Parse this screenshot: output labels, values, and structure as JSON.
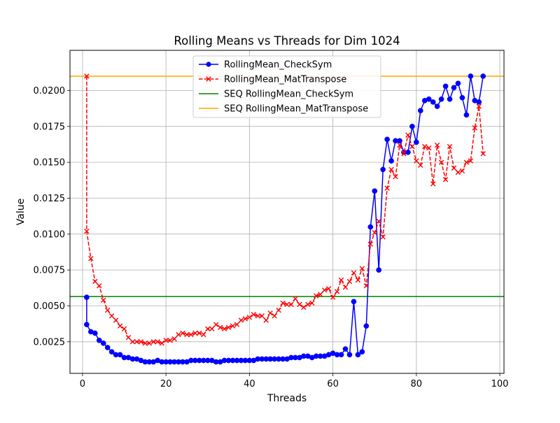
{
  "chart_data": {
    "type": "line",
    "title": "Rolling Means vs Threads for Dim 1024",
    "xlabel": "Threads",
    "ylabel": "Value",
    "xlim": [
      -3,
      101
    ],
    "ylim": [
      0.0003,
      0.0228
    ],
    "x_ticks": [
      0,
      20,
      40,
      60,
      80,
      100
    ],
    "x_tick_labels": [
      "0",
      "20",
      "40",
      "60",
      "80",
      "100"
    ],
    "y_ticks": [
      0.0025,
      0.005,
      0.0075,
      0.01,
      0.0125,
      0.015,
      0.0175,
      0.02
    ],
    "y_tick_labels": [
      "0.0025",
      "0.0050",
      "0.0075",
      "0.0100",
      "0.0125",
      "0.0150",
      "0.0175",
      "0.0200"
    ],
    "grid": true,
    "legend_position": "top-center",
    "series": [
      {
        "name": "RollingMean_CheckSym",
        "color": "#0000ff",
        "line_style": "solid",
        "marker": "circle",
        "x": [
          1,
          1,
          2,
          3,
          4,
          5,
          6,
          7,
          8,
          9,
          10,
          11,
          12,
          13,
          14,
          15,
          16,
          17,
          18,
          19,
          20,
          21,
          22,
          23,
          24,
          25,
          26,
          27,
          28,
          29,
          30,
          31,
          32,
          33,
          34,
          35,
          36,
          37,
          38,
          39,
          40,
          41,
          42,
          43,
          44,
          45,
          46,
          47,
          48,
          49,
          50,
          51,
          52,
          53,
          54,
          55,
          56,
          57,
          58,
          59,
          60,
          61,
          62,
          63,
          64,
          65,
          66,
          67,
          68,
          69,
          70,
          71,
          72,
          73,
          74,
          75,
          76,
          77,
          78,
          79,
          80,
          81,
          82,
          83,
          84,
          85,
          86,
          87,
          88,
          89,
          90,
          91,
          92,
          93,
          94,
          95,
          96
        ],
        "y": [
          0.0056,
          0.0037,
          0.0032,
          0.0031,
          0.0026,
          0.0024,
          0.0021,
          0.0018,
          0.0016,
          0.0016,
          0.0014,
          0.0014,
          0.0013,
          0.0013,
          0.0012,
          0.0011,
          0.0011,
          0.0011,
          0.0012,
          0.0011,
          0.0011,
          0.0011,
          0.0011,
          0.0011,
          0.0011,
          0.0011,
          0.0012,
          0.0012,
          0.0012,
          0.0012,
          0.0012,
          0.0012,
          0.0011,
          0.0011,
          0.0012,
          0.0012,
          0.0012,
          0.0012,
          0.0012,
          0.0012,
          0.0012,
          0.0012,
          0.0013,
          0.0013,
          0.0013,
          0.0013,
          0.0013,
          0.0013,
          0.0013,
          0.0013,
          0.0014,
          0.0014,
          0.0014,
          0.0015,
          0.0015,
          0.0014,
          0.0015,
          0.0015,
          0.0015,
          0.0016,
          0.0017,
          0.0016,
          0.0016,
          0.002,
          0.0016,
          0.0053,
          0.0016,
          0.0018,
          0.0036,
          0.0105,
          0.013,
          0.0075,
          0.0145,
          0.0166,
          0.0151,
          0.0165,
          0.0165,
          0.0157,
          0.0157,
          0.0175,
          0.0164,
          0.0186,
          0.0193,
          0.0194,
          0.0192,
          0.0189,
          0.0194,
          0.0203,
          0.0194,
          0.0202,
          0.0205,
          0.0195,
          0.0183,
          0.021,
          0.0193,
          0.0192,
          0.021
        ]
      },
      {
        "name": "RollingMean_MatTranspose",
        "color": "#ff0000",
        "line_style": "dashed",
        "marker": "x",
        "x": [
          1,
          1,
          2,
          3,
          4,
          5,
          6,
          7,
          8,
          9,
          10,
          11,
          12,
          13,
          14,
          15,
          16,
          17,
          18,
          19,
          20,
          21,
          22,
          23,
          24,
          25,
          26,
          27,
          28,
          29,
          30,
          31,
          32,
          33,
          34,
          35,
          36,
          37,
          38,
          39,
          40,
          41,
          42,
          43,
          44,
          45,
          46,
          47,
          48,
          49,
          50,
          51,
          52,
          53,
          54,
          55,
          56,
          57,
          58,
          59,
          60,
          61,
          62,
          63,
          64,
          65,
          66,
          67,
          68,
          69,
          70,
          71,
          72,
          73,
          74,
          75,
          76,
          77,
          78,
          79,
          80,
          81,
          82,
          83,
          84,
          85,
          86,
          87,
          88,
          89,
          90,
          91,
          92,
          93,
          94,
          95,
          96
        ],
        "y": [
          0.021,
          0.0102,
          0.0083,
          0.0067,
          0.0064,
          0.0054,
          0.0047,
          0.0043,
          0.004,
          0.0036,
          0.0034,
          0.0028,
          0.0025,
          0.0025,
          0.0025,
          0.0024,
          0.0024,
          0.0025,
          0.0025,
          0.0024,
          0.0026,
          0.0026,
          0.0027,
          0.003,
          0.0031,
          0.003,
          0.003,
          0.0031,
          0.0031,
          0.003,
          0.0034,
          0.0034,
          0.0037,
          0.0035,
          0.0034,
          0.0035,
          0.0036,
          0.0037,
          0.004,
          0.0041,
          0.0042,
          0.0044,
          0.0043,
          0.0043,
          0.004,
          0.0045,
          0.0043,
          0.0047,
          0.0052,
          0.0051,
          0.0051,
          0.0055,
          0.0051,
          0.0049,
          0.0051,
          0.0052,
          0.0057,
          0.0058,
          0.0061,
          0.0062,
          0.0056,
          0.006,
          0.0068,
          0.0063,
          0.0067,
          0.0073,
          0.0068,
          0.0076,
          0.0064,
          0.0093,
          0.0101,
          0.0109,
          0.0098,
          0.0132,
          0.0145,
          0.014,
          0.0162,
          0.0156,
          0.0169,
          0.0161,
          0.0151,
          0.0148,
          0.0161,
          0.016,
          0.0135,
          0.0162,
          0.015,
          0.0138,
          0.0161,
          0.0146,
          0.0143,
          0.0144,
          0.015,
          0.0151,
          0.0174,
          0.0189,
          0.0156
        ]
      },
      {
        "name": "SEQ RollingMean_CheckSym",
        "color": "#008000",
        "line_style": "solid",
        "marker": "none",
        "hline": 0.00565
      },
      {
        "name": "SEQ RollingMean_MatTranspose",
        "color": "#ffa500",
        "line_style": "solid",
        "marker": "none",
        "hline": 0.021
      }
    ]
  }
}
